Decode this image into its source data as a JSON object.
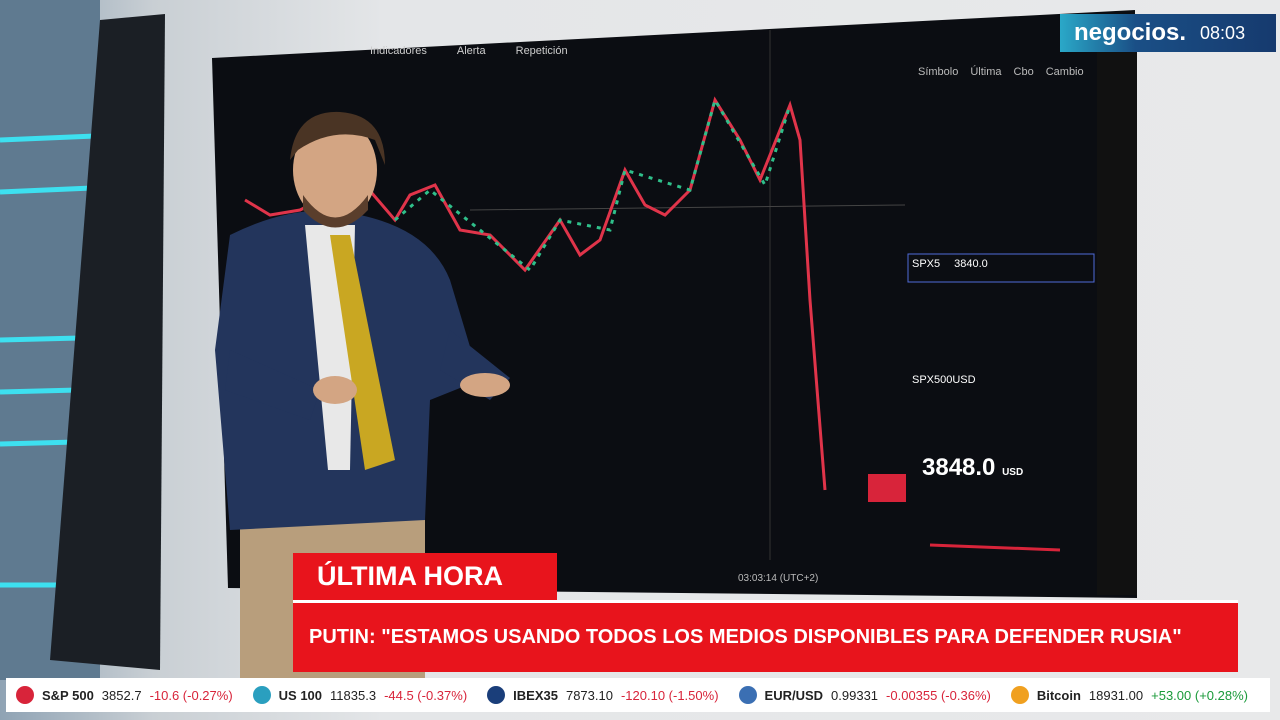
{
  "channel": {
    "logo": "negocios.",
    "time": "08:03"
  },
  "lower_third": {
    "tag": "ÚLTIMA HORA",
    "headline": "PUTIN: \"ESTAMOS USANDO TODOS LOS MEDIOS DISPONIBLES PARA DEFENDER RUSIA\""
  },
  "screen": {
    "toolbar": [
      "Indicadores",
      "Alerta",
      "Repetición"
    ],
    "watchlist_header": [
      "Símbolo",
      "Última",
      "Cbo",
      "Cambio"
    ],
    "watchlist": [
      {
        "symbol": "SPX5",
        "last": "3840.0"
      },
      {
        "symbol": "SPX500USD",
        "last": ""
      }
    ],
    "price": "3848.0",
    "currency": "USD",
    "clock": "03:03:14 (UTC+2)"
  },
  "ticker": [
    {
      "name": "S&P 500",
      "last": "3852.7",
      "change": "-10.6 (-0.27%)"
    },
    {
      "name": "US 100",
      "last": "11835.3",
      "change": "-44.5 (-0.37%)"
    },
    {
      "name": "IBEX35",
      "last": "7873.10",
      "change": "-120.10 (-1.50%)"
    },
    {
      "name": "EUR/USD",
      "last": "0.99331",
      "change": "-0.00355 (-0.36%)"
    },
    {
      "name": "Bitcoin",
      "last": "18931.00",
      "change": "+53.00 (+0.28%)"
    }
  ]
}
